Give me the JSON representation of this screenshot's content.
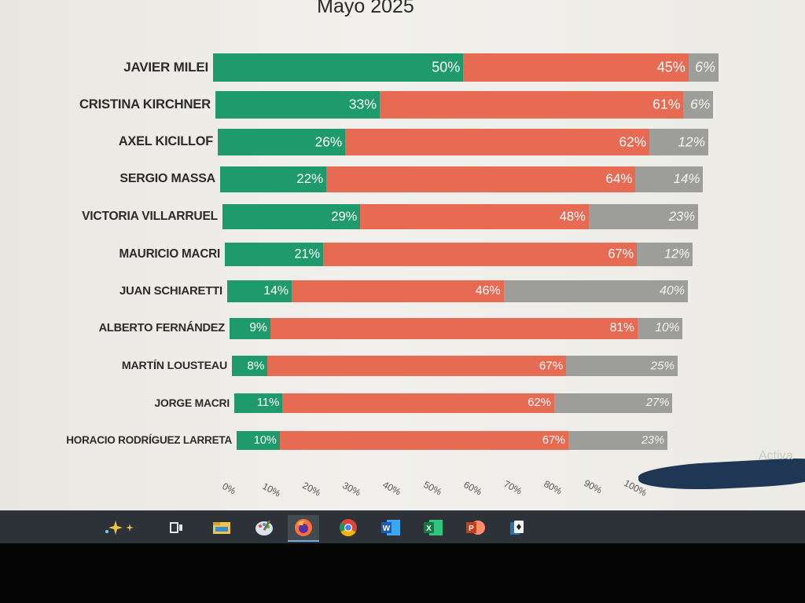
{
  "chart_data": {
    "type": "bar",
    "title": "Mayo 2025",
    "stacked": true,
    "orientation": "horizontal",
    "categories": [
      "JAVIER MILEI",
      "CRISTINA KIRCHNER",
      "AXEL KICILLOF",
      "SERGIO MASSA",
      "VICTORIA VILLARRUEL",
      "MAURICIO MACRI",
      "JUAN SCHIARETTI",
      "ALBERTO FERNÁNDEZ",
      "MARTÍN LOUSTEAU",
      "JORGE MACRI",
      "HORACIO RODRÍGUEZ LARRETA"
    ],
    "series": [
      {
        "values": [
          50,
          33,
          26,
          22,
          29,
          21,
          14,
          9,
          8,
          11,
          10
        ],
        "color": "#1f9a6c"
      },
      {
        "values": [
          45,
          61,
          62,
          64,
          48,
          67,
          46,
          81,
          67,
          62,
          67
        ],
        "color": "#e76a53"
      },
      {
        "values": [
          6,
          6,
          12,
          14,
          23,
          12,
          40,
          10,
          25,
          27,
          23
        ],
        "color": "#9d9d9a"
      }
    ],
    "xlim": [
      0,
      100
    ],
    "xticks": [
      "0%",
      "10%",
      "20%",
      "30%",
      "40%",
      "50%",
      "60%",
      "70%",
      "80%",
      "90%",
      "100%"
    ],
    "grid": false
  },
  "watermark": "Activa",
  "taskbar": {
    "items": [
      {
        "icon": "copilot-icon"
      },
      {
        "icon": "task-view-icon"
      },
      {
        "icon": "file-explorer-icon"
      },
      {
        "icon": "paint-icon"
      },
      {
        "icon": "firefox-icon",
        "active": true
      },
      {
        "icon": "chrome-icon"
      },
      {
        "icon": "word-icon"
      },
      {
        "icon": "excel-icon"
      },
      {
        "icon": "powerpoint-icon"
      },
      {
        "icon": "solitaire-icon"
      }
    ]
  }
}
